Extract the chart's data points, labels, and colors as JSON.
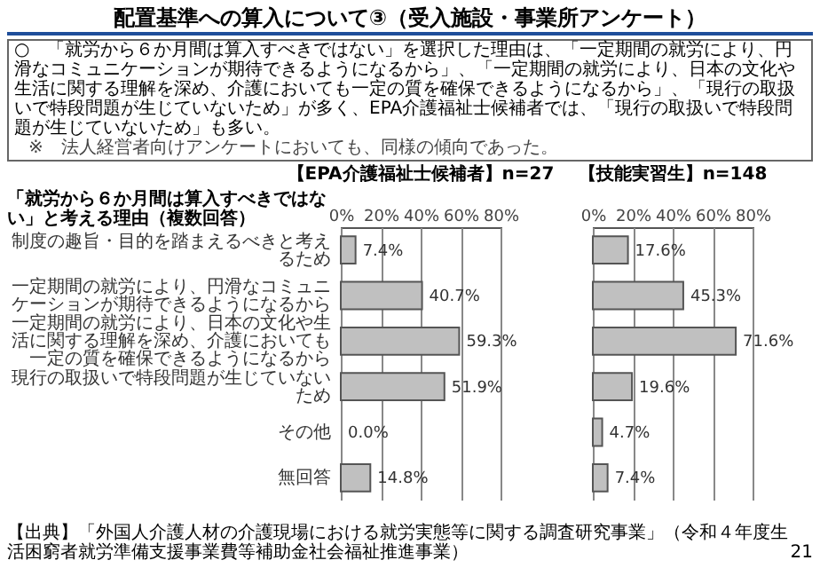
{
  "chart_data": [
    {
      "type": "other",
      "title": "配置基準への算入について③（受入施設・事業所アンケート）",
      "annotations": [
        "○　「就労から６か月間は算入すべきではない」を選択した理由は、「一定期間の就労により、円滑なコミュニケーションが期待できるようになるから」、「一定期間の就労により、日本の文化や生活に関する理解を深め、介護においても一定の質を確保できるようになるから」、「現行の取扱いで特段問題が生じていないため」が多く、EPA介護福祉士候補者では、「現行の取扱いで特段問題が生じていないため」も多い。",
        "※　法人経営者向けアンケートにおいても、同様の傾向であった。",
        "【出典】「外国人介護人材の介護現場における就労実態等に関する調査研究事業」（令和４年度生活困窮者就労準備支援事業費等補助金社会福祉推進事業）",
        "21"
      ]
    },
    {
      "type": "bar",
      "orientation": "horizontal",
      "title": "【EPA介護福祉士候補者】n=27",
      "ylabel": "「就労から６か月間は算入すべきではない」と考える理由（複数回答）",
      "categories": [
        "制度の趣旨・目的を踏まえるべきと考えるため",
        "一定期間の就労により、円滑なコミュニケーションが期待できるようになるから",
        "一定期間の就労により、日本の文化や生活に関する理解を深め、介護においても一定の質を確保できるようになるから",
        "現行の取扱いで特段問題が生じていないため",
        "その他",
        "無回答"
      ],
      "values": [
        7.4,
        40.7,
        59.3,
        51.9,
        0.0,
        14.8
      ],
      "value_labels": [
        "7.4%",
        "40.7%",
        "59.3%",
        "51.9%",
        "0.0%",
        "14.8%"
      ],
      "color": "#c0c0c0",
      "xlim": [
        0,
        80
      ],
      "xticks": [
        {
          "value": 0,
          "label": "0%"
        },
        {
          "value": 20,
          "label": "20%"
        },
        {
          "value": 40,
          "label": "40%"
        },
        {
          "value": 60,
          "label": "60%"
        },
        {
          "value": 80,
          "label": "80%"
        }
      ],
      "grid": "x"
    },
    {
      "type": "bar",
      "orientation": "horizontal",
      "title": "【技能実習生】n=148",
      "categories": [
        "制度の趣旨・目的を踏まえるべきと考えるため",
        "一定期間の就労により、円滑なコミュニケーションが期待できるようになるから",
        "一定期間の就労により、日本の文化や生活に関する理解を深め、介護においても一定の質を確保できるようになるから",
        "現行の取扱いで特段問題が生じていないため",
        "その他",
        "無回答"
      ],
      "values": [
        17.6,
        45.3,
        71.6,
        19.6,
        4.7,
        7.4
      ],
      "value_labels": [
        "17.6%",
        "45.3%",
        "71.6%",
        "19.6%",
        "4.7%",
        "7.4%"
      ],
      "color": "#c0c0c0",
      "xlim": [
        0,
        80
      ],
      "xticks": [
        {
          "value": 0,
          "label": "0%"
        },
        {
          "value": 20,
          "label": "20%"
        },
        {
          "value": 40,
          "label": "40%"
        },
        {
          "value": 60,
          "label": "60%"
        },
        {
          "value": 80,
          "label": "80%"
        }
      ],
      "grid": "x",
      "tick_labels": "x"
    }
  ]
}
